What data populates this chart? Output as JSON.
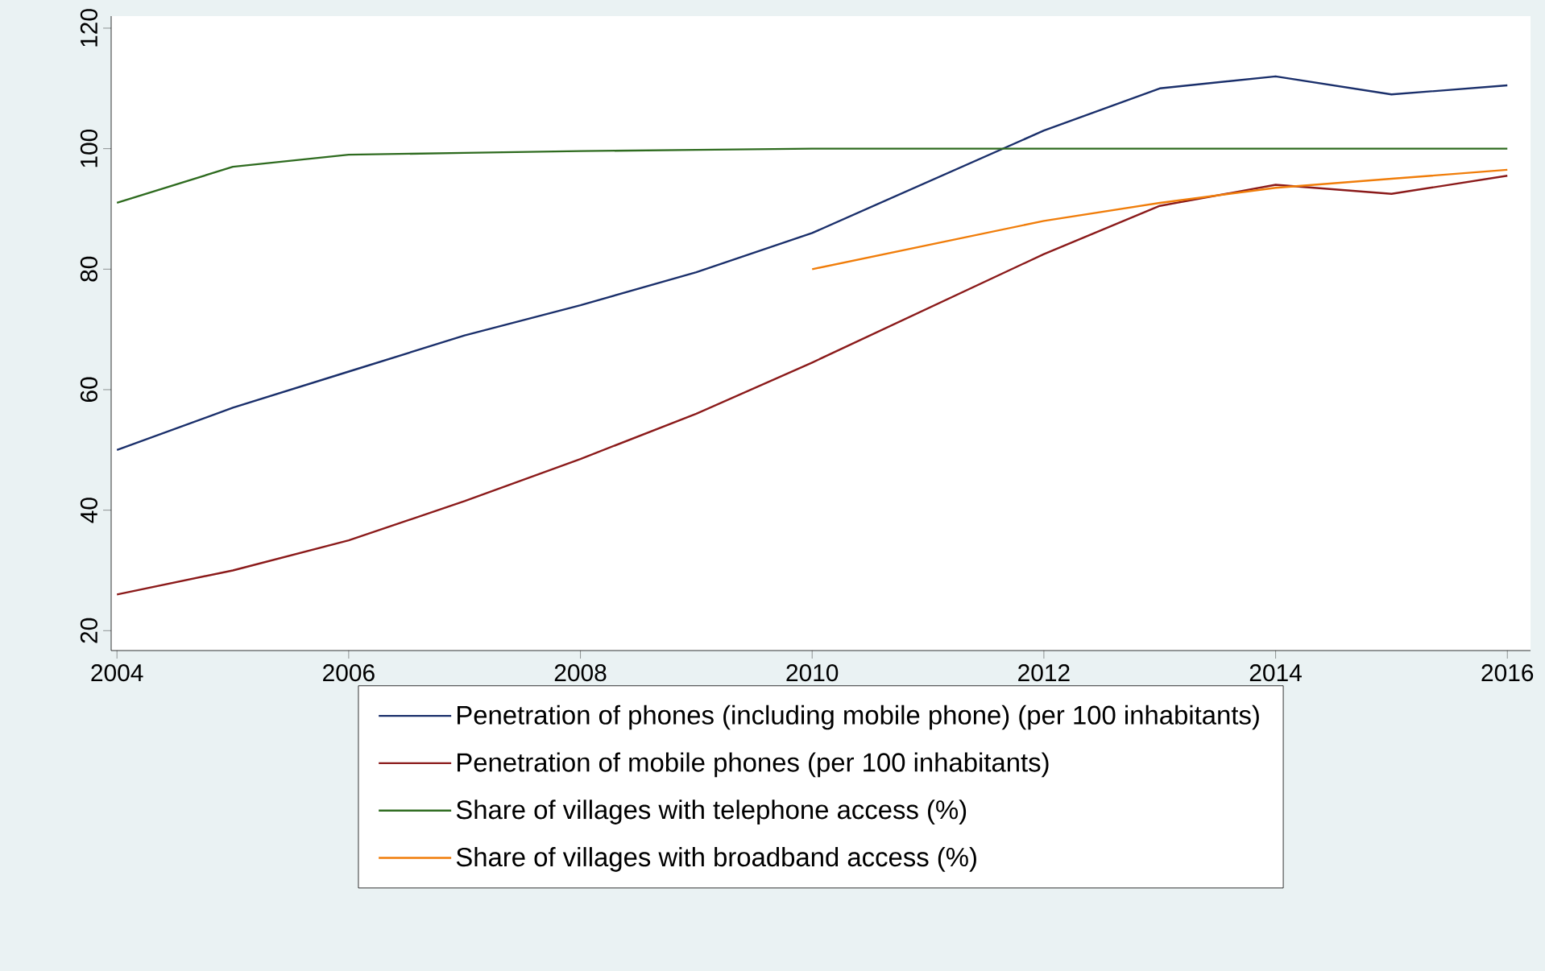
{
  "chart_data": {
    "type": "line",
    "x": [
      2004,
      2005,
      2006,
      2007,
      2008,
      2009,
      2010,
      2011,
      2012,
      2013,
      2014,
      2015,
      2016
    ],
    "xlim": [
      2003.95,
      2016.2
    ],
    "xticks": [
      2004,
      2006,
      2008,
      2010,
      2012,
      2014,
      2016
    ],
    "ylim": [
      16.7,
      122
    ],
    "yticks": [
      20,
      40,
      60,
      80,
      100,
      120
    ],
    "grid": false,
    "legend": "bottom",
    "marker": "none",
    "line_style": "solid",
    "series": [
      {
        "name": "Penetration of phones (including mobile phone) (per 100 inhabitants)",
        "color": "#1a2f6b",
        "values": [
          50,
          57,
          63,
          69,
          74,
          79.5,
          86,
          94.5,
          103,
          110,
          112,
          109,
          110.5
        ]
      },
      {
        "name": "Penetration of mobile phones (per 100 inhabitants)",
        "color": "#8b1a1a",
        "values": [
          26,
          30,
          35,
          41.5,
          48.5,
          56,
          64.5,
          73.5,
          82.5,
          90.5,
          94,
          92.5,
          95.5
        ]
      },
      {
        "name": "Share of villages with telephone access (%)",
        "color": "#2e6b1f",
        "values": [
          91,
          97,
          99,
          99.3,
          99.6,
          99.8,
          100,
          100,
          100,
          100,
          100,
          100,
          100
        ]
      },
      {
        "name": "Share of villages with broadband access (%)",
        "color": "#f07d0a",
        "x": [
          2010,
          2012,
          2013,
          2014,
          2015,
          2016
        ],
        "values": [
          80,
          88,
          91,
          93.5,
          95,
          96.5
        ]
      }
    ]
  }
}
